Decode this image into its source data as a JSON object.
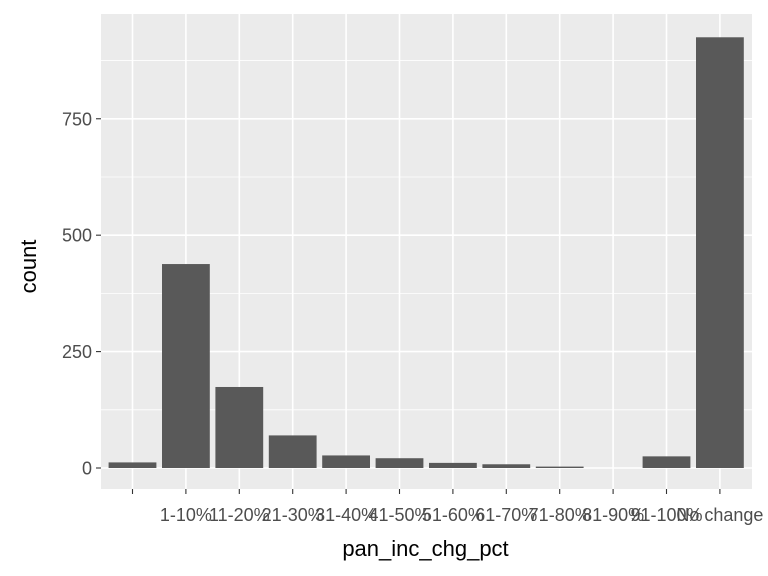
{
  "chart_data": {
    "type": "bar",
    "categories": [
      "",
      "1-10%",
      "11-20%",
      "21-30%",
      "31-40%",
      "41-50%",
      "51-60%",
      "61-70%",
      "71-80%",
      "81-90%",
      "91-100%",
      "No change"
    ],
    "values": [
      12,
      438,
      174,
      70,
      27,
      21,
      11,
      8,
      3,
      0,
      25,
      925
    ],
    "title": "",
    "xlabel": "pan_inc_chg_pct",
    "ylabel": "count",
    "ylim": [
      0,
      975
    ],
    "yticks": [
      0,
      250,
      500,
      750
    ],
    "ytick_labels": [
      "0",
      "250",
      "500",
      "750"
    ],
    "grid": true,
    "legend": "none",
    "colors": {
      "panel_bg": "#ebebeb",
      "grid": "#ffffff",
      "bar": "#595959",
      "tick_text": "#4d4d4d",
      "axis_title": "#000000"
    }
  }
}
